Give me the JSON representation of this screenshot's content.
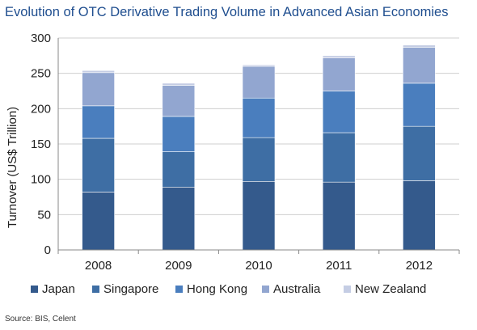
{
  "title": "Evolution of OTC Derivative Trading Volume in Advanced Asian Economies",
  "source": "Source: BIS, Celent",
  "colors": {
    "background": "#ffffff",
    "gridline": "#cfcfcf",
    "axis": "#888888",
    "title_color": "#1f4e8f"
  },
  "chart_data": {
    "type": "bar",
    "stacked": true,
    "categories": [
      "2008",
      "2009",
      "2010",
      "2011",
      "2012"
    ],
    "ylabel": "Turnover (US$ Trillion)",
    "xlabel": "",
    "ylim": [
      0,
      300
    ],
    "yticks": [
      "0",
      "50",
      "100",
      "150",
      "200",
      "250",
      "300"
    ],
    "grid": true,
    "legend_position": "bottom",
    "series": [
      {
        "name": "Japan",
        "color": "#345a8c",
        "values": [
          82,
          89,
          97,
          96,
          98
        ]
      },
      {
        "name": "Singapore",
        "color": "#3e6ea4",
        "values": [
          76,
          50,
          62,
          70,
          77
        ]
      },
      {
        "name": "Hong Kong",
        "color": "#4a7ebe",
        "values": [
          46,
          50,
          56,
          59,
          61
        ]
      },
      {
        "name": "Australia",
        "color": "#92a6d0",
        "values": [
          47,
          44,
          45,
          47,
          51
        ]
      },
      {
        "name": "New Zealand",
        "color": "#c5cde4",
        "values": [
          3,
          3,
          2,
          3,
          3
        ]
      }
    ]
  }
}
